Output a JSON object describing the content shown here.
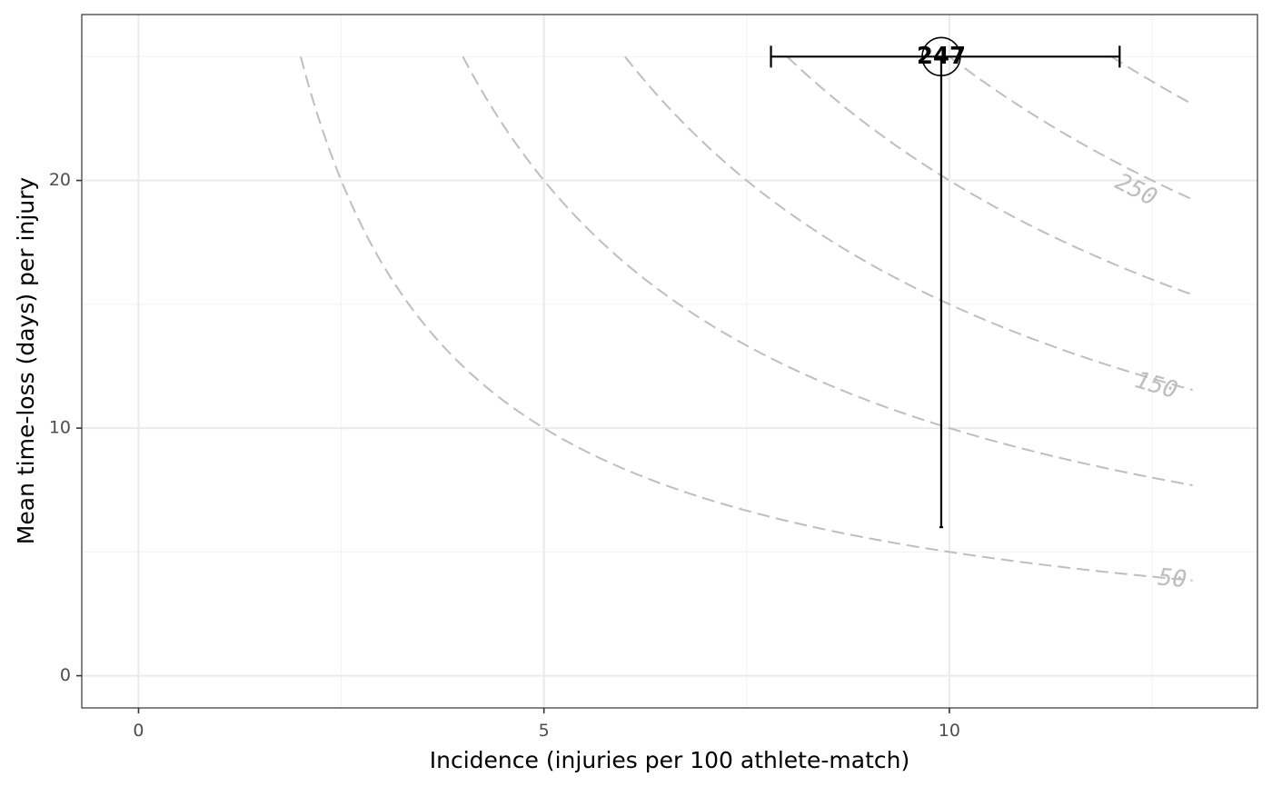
{
  "chart_data": {
    "type": "scatter",
    "title": "",
    "xlabel": "Incidence (injuries per 100 athlete-match)",
    "ylabel": "Mean time-loss (days) per injury",
    "xlim": [
      -0.7,
      13.8
    ],
    "ylim": [
      -1.3,
      26.7
    ],
    "x_ticks": [
      0,
      5,
      10
    ],
    "y_ticks": [
      0,
      10,
      20
    ],
    "x_minor_ticks": [
      2.5,
      7.5,
      12.5
    ],
    "y_minor_ticks": [
      5,
      15,
      25
    ],
    "grid": true,
    "contours": {
      "levels": [
        50,
        100,
        150,
        200,
        250,
        300
      ],
      "x_range": [
        0.5,
        13
      ],
      "y_max": 25,
      "labeled_levels": [
        50,
        150,
        250
      ],
      "color": "#bebebe",
      "style": "dashed"
    },
    "points": [
      {
        "label": "247",
        "x": 9.9,
        "y": 25,
        "x_err": [
          7.8,
          12.1
        ],
        "y_err": [
          6.0,
          25
        ]
      }
    ],
    "contour_labels": [
      {
        "text": "50",
        "x": 12.75,
        "y": 3.9
      },
      {
        "text": "150",
        "x": 12.55,
        "y": 11.7
      },
      {
        "text": "250",
        "x": 12.3,
        "y": 19.6
      }
    ],
    "colors": {
      "contour": "#bebebe",
      "point": "#000000",
      "grid_major": "#ebebeb",
      "grid_minor": "#f3f3f3",
      "panel_border": "#333333"
    }
  }
}
